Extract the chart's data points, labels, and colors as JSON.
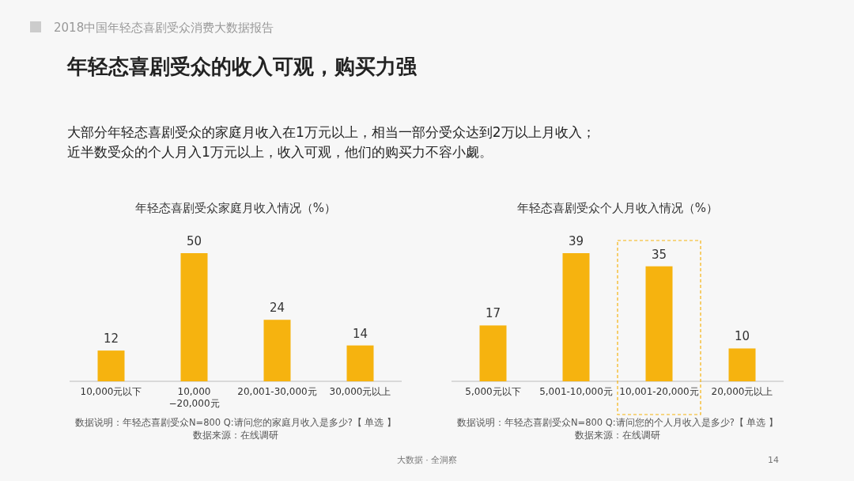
{
  "chart_data": [
    {
      "type": "bar",
      "title": "年轻态喜剧受众家庭月收入情况（%）",
      "categories": [
        "10,000元以下",
        "10,000\n−20,000元",
        "20,001-30,000元",
        "30,000元以上"
      ],
      "values": [
        12,
        50,
        24,
        14
      ],
      "color": "#f6b30f",
      "data_labels": true,
      "annotations": [
        "2018中国年轻态喜剧受众消费大数据报告",
        "年轻态喜剧受众的收入可观，购买力强",
        "大部分年轻态喜剧受众的家庭月收入在1万元以上，相当一部分受众达到2万以上月收入；",
        "近半数受众的个人月入1万元以上，收入可观，他们的购买力不容小觑。",
        "数据说明：年轻态喜剧受众N=800   Q:请问您的家庭月收入是多少?【 单选 】",
        "数据来源：在线调研",
        "大数据 · 全洞察",
        "14"
      ]
    },
    {
      "type": "bar",
      "title": "年轻态喜剧受众个人月收入情况（%）",
      "categories": [
        "5,000元以下",
        "5,001-10,000元",
        "10,001-20,000元",
        "20,000元以上"
      ],
      "values": [
        17,
        39,
        35,
        10
      ],
      "color": "#f6b30f",
      "data_labels": true,
      "annotations": [
        "数据说明：年轻态喜剧受众N=800   Q:请问您的个人月收入是多少?【 单选 】",
        "数据来源：在线调研"
      ]
    }
  ]
}
